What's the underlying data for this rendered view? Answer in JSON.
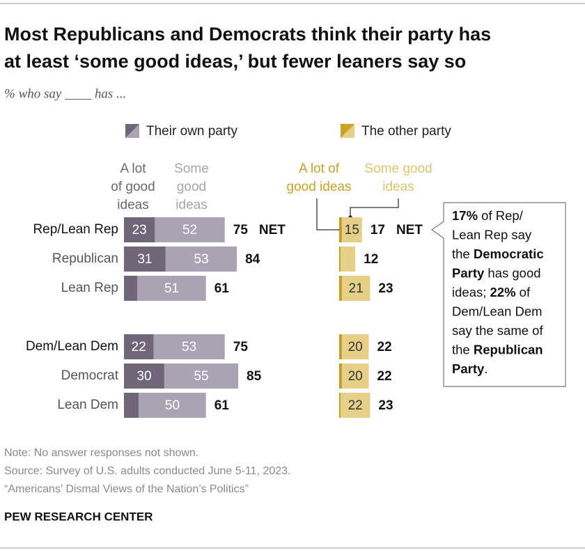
{
  "chart_data": {
    "type": "bar",
    "orientation": "horizontal",
    "stacked": true,
    "title": [
      "Most Republicans and Democrats think their party has",
      "at least ‘some good ideas,’ but fewer leaners say so"
    ],
    "subtitle": "% who say ____ has ...",
    "categories": [
      "Rep/Lean Rep",
      "Republican",
      "Lean Rep",
      "Dem/Lean Dem",
      "Democrat",
      "Lean Dem"
    ],
    "panels": [
      {
        "legend": "Their own party",
        "legend_color": "#6f6679",
        "xlim": [
          0,
          100
        ],
        "net_label": "NET",
        "series": [
          {
            "name": "A lot of good ideas",
            "color": "#6f6679",
            "header_color": "#6b6670",
            "label_color": "#ffffff",
            "values": [
              23,
              31,
              10,
              22,
              30,
              11
            ],
            "value_labels": [
              23,
              31,
              null,
              22,
              30,
              null
            ]
          },
          {
            "name": "Some good ideas",
            "color": "#aaa3b3",
            "header_color": "#a9a4ad",
            "label_color": "#ffffff",
            "values": [
              52,
              53,
              51,
              53,
              55,
              50
            ],
            "value_labels": [
              52,
              53,
              51,
              53,
              55,
              50
            ]
          }
        ],
        "totals": [
          75,
          84,
          61,
          75,
          85,
          61
        ]
      },
      {
        "legend": "The other party",
        "legend_color": "#c9a227",
        "xlim": [
          0,
          100
        ],
        "net_label": "NET",
        "series": [
          {
            "name": "A lot of good ideas",
            "color": "#c09a22",
            "header_color": "#c9a227",
            "label_color": "#333333",
            "values": [
              2,
              1,
              2,
              2,
              2,
              1
            ],
            "value_labels": [
              null,
              null,
              null,
              null,
              null,
              null
            ]
          },
          {
            "name": "Some good ideas",
            "color": "#e6cf86",
            "header_color": "#dcc56e",
            "label_color": "#333333",
            "values": [
              15,
              11,
              21,
              20,
              20,
              22
            ],
            "value_labels": [
              15,
              null,
              21,
              20,
              20,
              22
            ]
          }
        ],
        "totals": [
          17,
          12,
          23,
          22,
          22,
          23
        ]
      }
    ],
    "annotation": [
      [
        {
          "text": "17%",
          "bold": true
        },
        {
          "text": " of Rep/"
        }
      ],
      [
        {
          "text": "Lean Rep say"
        }
      ],
      [
        {
          "text": "the "
        },
        {
          "text": "Democratic",
          "bold": true
        }
      ],
      [
        {
          "text": "Party",
          "bold": true
        },
        {
          "text": " has good"
        }
      ],
      [
        {
          "text": "ideas; "
        },
        {
          "text": "22%",
          "bold": true
        },
        {
          "text": " of"
        }
      ],
      [
        {
          "text": "Dem/Lean Dem"
        }
      ],
      [
        {
          "text": "say the same of"
        }
      ],
      [
        {
          "text": "the "
        },
        {
          "text": "Republican",
          "bold": true
        }
      ],
      [
        {
          "text": "Party",
          "bold": true
        },
        {
          "text": "."
        }
      ]
    ],
    "notes": [
      "Note: No answer responses not shown.",
      "Source: Survey of U.S. adults conducted June 5-11, 2023.",
      "“Americans’ Dismal Views of the Nation’s Politics”"
    ],
    "source_label": "PEW RESEARCH CENTER"
  }
}
